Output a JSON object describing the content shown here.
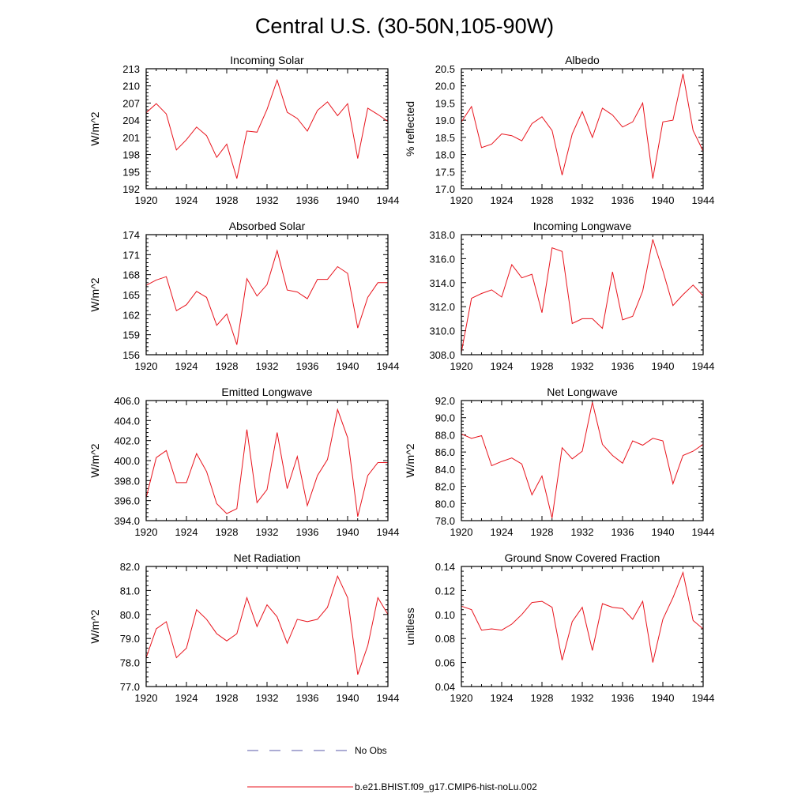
{
  "figure": {
    "title": "Central U.S. (30-50N,105-90W)",
    "legend": [
      {
        "label": "No Obs",
        "color": "#5a5aa8",
        "dash": "dashed"
      },
      {
        "label": "b.e21.BHIST.f09_g17.CMIP6-hist-noLu.002",
        "color": "#e8131c",
        "dash": "solid"
      }
    ]
  },
  "chart_data": [
    {
      "type": "line",
      "title": "Incoming Solar",
      "ylabel": "W/m^2",
      "xlim": [
        1920,
        1944
      ],
      "ylim": [
        192,
        213
      ],
      "xticks": [
        1920,
        1924,
        1928,
        1932,
        1936,
        1940,
        1944
      ],
      "yticks": [
        "192",
        "195",
        "198",
        "201",
        "204",
        "207",
        "210",
        "213"
      ],
      "x": [
        1920,
        1921,
        1922,
        1923,
        1924,
        1925,
        1926,
        1927,
        1928,
        1929,
        1930,
        1931,
        1932,
        1933,
        1934,
        1935,
        1936,
        1937,
        1938,
        1939,
        1940,
        1941,
        1942,
        1943,
        1944
      ],
      "series": [
        {
          "name": "b.e21.BHIST.f09_g17.CMIP6-hist-noLu.002",
          "color": "#e8131c",
          "values": [
            205.3,
            206.9,
            205.1,
            198.8,
            200.6,
            202.8,
            201.3,
            197.5,
            199.8,
            193.8,
            202.1,
            201.9,
            205.9,
            211.0,
            205.4,
            204.3,
            202.1,
            205.7,
            207.2,
            204.8,
            206.9,
            197.3,
            206.1,
            205.0,
            203.8
          ]
        }
      ]
    },
    {
      "type": "line",
      "title": "Albedo",
      "ylabel": "% reflected",
      "xlim": [
        1920,
        1944
      ],
      "ylim": [
        17.0,
        20.5
      ],
      "xticks": [
        1920,
        1924,
        1928,
        1932,
        1936,
        1940,
        1944
      ],
      "yticks": [
        "17.0",
        "17.5",
        "18.0",
        "18.5",
        "19.0",
        "19.5",
        "20.0",
        "20.5"
      ],
      "x": [
        1920,
        1921,
        1922,
        1923,
        1924,
        1925,
        1926,
        1927,
        1928,
        1929,
        1930,
        1931,
        1932,
        1933,
        1934,
        1935,
        1936,
        1937,
        1938,
        1939,
        1940,
        1941,
        1942,
        1943,
        1944
      ],
      "series": [
        {
          "name": "b.e21.BHIST.f09_g17.CMIP6-hist-noLu.002",
          "color": "#e8131c",
          "values": [
            18.95,
            19.4,
            18.2,
            18.3,
            18.6,
            18.55,
            18.4,
            18.9,
            19.1,
            18.7,
            17.4,
            18.6,
            19.25,
            18.5,
            19.35,
            19.15,
            18.8,
            18.95,
            19.5,
            17.3,
            18.95,
            19.0,
            20.35,
            18.7,
            18.1
          ]
        }
      ]
    },
    {
      "type": "line",
      "title": "Absorbed Solar",
      "ylabel": "W/m^2",
      "xlim": [
        1920,
        1944
      ],
      "ylim": [
        156,
        174
      ],
      "xticks": [
        1920,
        1924,
        1928,
        1932,
        1936,
        1940,
        1944
      ],
      "yticks": [
        "156",
        "159",
        "162",
        "165",
        "168",
        "171",
        "174"
      ],
      "x": [
        1920,
        1921,
        1922,
        1923,
        1924,
        1925,
        1926,
        1927,
        1928,
        1929,
        1930,
        1931,
        1932,
        1933,
        1934,
        1935,
        1936,
        1937,
        1938,
        1939,
        1940,
        1941,
        1942,
        1943,
        1944
      ],
      "series": [
        {
          "name": "b.e21.BHIST.f09_g17.CMIP6-hist-noLu.002",
          "color": "#e8131c",
          "values": [
            166.4,
            167.2,
            167.7,
            162.6,
            163.5,
            165.5,
            164.6,
            160.4,
            162.1,
            157.5,
            167.4,
            164.8,
            166.5,
            171.6,
            165.7,
            165.4,
            164.4,
            167.3,
            167.3,
            169.2,
            168.2,
            160.0,
            164.6,
            166.8,
            166.8
          ]
        }
      ]
    },
    {
      "type": "line",
      "title": "Incoming Longwave",
      "ylabel": "",
      "xlim": [
        1920,
        1944
      ],
      "ylim": [
        308.0,
        318.0
      ],
      "xticks": [
        1920,
        1924,
        1928,
        1932,
        1936,
        1940,
        1944
      ],
      "yticks": [
        "308.0",
        "310.0",
        "312.0",
        "314.0",
        "316.0",
        "318.0"
      ],
      "x": [
        1920,
        1921,
        1922,
        1923,
        1924,
        1925,
        1926,
        1927,
        1928,
        1929,
        1930,
        1931,
        1932,
        1933,
        1934,
        1935,
        1936,
        1937,
        1938,
        1939,
        1940,
        1941,
        1942,
        1943,
        1944
      ],
      "series": [
        {
          "name": "b.e21.BHIST.f09_g17.CMIP6-hist-noLu.002",
          "color": "#e8131c",
          "values": [
            308.2,
            312.7,
            313.1,
            313.4,
            312.8,
            315.5,
            314.4,
            314.7,
            311.5,
            316.9,
            316.6,
            310.6,
            311.0,
            311.0,
            310.2,
            314.9,
            310.9,
            311.2,
            313.3,
            317.6,
            315.0,
            312.1,
            313.0,
            313.8,
            312.9
          ]
        }
      ]
    },
    {
      "type": "line",
      "title": "Emitted Longwave",
      "ylabel": "W/m^2",
      "xlim": [
        1920,
        1944
      ],
      "ylim": [
        394.0,
        406.0
      ],
      "xticks": [
        1920,
        1924,
        1928,
        1932,
        1936,
        1940,
        1944
      ],
      "yticks": [
        "394.0",
        "396.0",
        "398.0",
        "400.0",
        "402.0",
        "404.0",
        "406.0"
      ],
      "x": [
        1920,
        1921,
        1922,
        1923,
        1924,
        1925,
        1926,
        1927,
        1928,
        1929,
        1930,
        1931,
        1932,
        1933,
        1934,
        1935,
        1936,
        1937,
        1938,
        1939,
        1940,
        1941,
        1942,
        1943,
        1944
      ],
      "series": [
        {
          "name": "b.e21.BHIST.f09_g17.CMIP6-hist-noLu.002",
          "color": "#e8131c",
          "values": [
            396.3,
            400.3,
            401.0,
            397.8,
            397.8,
            400.7,
            398.9,
            395.7,
            394.7,
            395.2,
            403.1,
            395.8,
            397.1,
            402.8,
            397.2,
            400.4,
            395.5,
            398.5,
            400.1,
            405.1,
            402.3,
            394.4,
            398.5,
            399.8,
            399.8
          ]
        }
      ]
    },
    {
      "type": "line",
      "title": "Net Longwave",
      "ylabel": "W/m^2",
      "xlim": [
        1920,
        1944
      ],
      "ylim": [
        78.0,
        92.0
      ],
      "xticks": [
        1920,
        1924,
        1928,
        1932,
        1936,
        1940,
        1944
      ],
      "yticks": [
        "78.0",
        "80.0",
        "82.0",
        "84.0",
        "86.0",
        "88.0",
        "90.0",
        "92.0"
      ],
      "x": [
        1920,
        1921,
        1922,
        1923,
        1924,
        1925,
        1926,
        1927,
        1928,
        1929,
        1930,
        1931,
        1932,
        1933,
        1934,
        1935,
        1936,
        1937,
        1938,
        1939,
        1940,
        1941,
        1942,
        1943,
        1944
      ],
      "series": [
        {
          "name": "b.e21.BHIST.f09_g17.CMIP6-hist-noLu.002",
          "color": "#e8131c",
          "values": [
            88.1,
            87.6,
            87.9,
            84.4,
            84.9,
            85.3,
            84.6,
            81.0,
            83.2,
            78.3,
            86.5,
            85.2,
            86.1,
            91.8,
            86.9,
            85.6,
            84.7,
            87.3,
            86.8,
            87.6,
            87.3,
            82.3,
            85.6,
            86.1,
            86.9
          ]
        }
      ]
    },
    {
      "type": "line",
      "title": "Net Radiation",
      "ylabel": "W/m^2",
      "xlim": [
        1920,
        1944
      ],
      "ylim": [
        77.0,
        82.0
      ],
      "xticks": [
        1920,
        1924,
        1928,
        1932,
        1936,
        1940,
        1944
      ],
      "yticks": [
        "77.0",
        "78.0",
        "79.0",
        "80.0",
        "81.0",
        "82.0"
      ],
      "x": [
        1920,
        1921,
        1922,
        1923,
        1924,
        1925,
        1926,
        1927,
        1928,
        1929,
        1930,
        1931,
        1932,
        1933,
        1934,
        1935,
        1936,
        1937,
        1938,
        1939,
        1940,
        1941,
        1942,
        1943,
        1944
      ],
      "series": [
        {
          "name": "b.e21.BHIST.f09_g17.CMIP6-hist-noLu.002",
          "color": "#e8131c",
          "values": [
            78.2,
            79.4,
            79.7,
            78.2,
            78.6,
            80.2,
            79.8,
            79.2,
            78.9,
            79.2,
            80.7,
            79.5,
            80.4,
            79.9,
            78.8,
            79.8,
            79.7,
            79.8,
            80.3,
            81.6,
            80.7,
            77.5,
            78.7,
            80.7,
            80.0
          ]
        }
      ]
    },
    {
      "type": "line",
      "title": "Ground Snow Covered Fraction",
      "ylabel": "unitless",
      "xlim": [
        1920,
        1944
      ],
      "ylim": [
        0.04,
        0.14
      ],
      "xticks": [
        1920,
        1924,
        1928,
        1932,
        1936,
        1940,
        1944
      ],
      "yticks": [
        "0.04",
        "0.06",
        "0.08",
        "0.10",
        "0.12",
        "0.14"
      ],
      "x": [
        1920,
        1921,
        1922,
        1923,
        1924,
        1925,
        1926,
        1927,
        1928,
        1929,
        1930,
        1931,
        1932,
        1933,
        1934,
        1935,
        1936,
        1937,
        1938,
        1939,
        1940,
        1941,
        1942,
        1943,
        1944
      ],
      "series": [
        {
          "name": "b.e21.BHIST.f09_g17.CMIP6-hist-noLu.002",
          "color": "#e8131c",
          "values": [
            0.107,
            0.104,
            0.087,
            0.088,
            0.087,
            0.092,
            0.1,
            0.11,
            0.111,
            0.106,
            0.062,
            0.094,
            0.106,
            0.07,
            0.109,
            0.106,
            0.105,
            0.096,
            0.111,
            0.06,
            0.096,
            0.114,
            0.135,
            0.095,
            0.088
          ]
        }
      ]
    }
  ]
}
